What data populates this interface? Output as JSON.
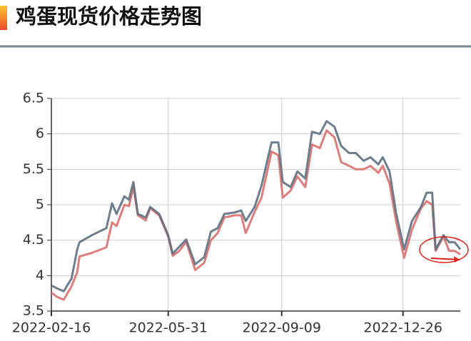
{
  "chart_data": {
    "type": "line",
    "title": "鸡蛋现货价格走势图",
    "x": [
      "2022-02-16",
      "2022-02-21",
      "2022-02-27",
      "2022-03-06",
      "2022-03-11",
      "2022-03-13",
      "2022-03-24",
      "2022-04-06",
      "2022-04-11",
      "2022-04-15",
      "2022-04-22",
      "2022-04-26",
      "2022-04-30",
      "2022-05-04",
      "2022-05-11",
      "2022-05-15",
      "2022-05-23",
      "2022-05-31",
      "2022-06-04",
      "2022-06-10",
      "2022-06-16",
      "2022-06-24",
      "2022-07-02",
      "2022-07-08",
      "2022-07-14",
      "2022-07-20",
      "2022-07-29",
      "2022-08-04",
      "2022-08-08",
      "2022-08-16",
      "2022-08-22",
      "2022-08-31",
      "2022-09-06",
      "2022-09-10",
      "2022-09-17",
      "2022-09-23",
      "2022-09-30",
      "2022-10-06",
      "2022-10-13",
      "2022-10-19",
      "2022-10-26",
      "2022-11-01",
      "2022-11-08",
      "2022-11-14",
      "2022-11-21",
      "2022-11-27",
      "2022-12-04",
      "2022-12-08",
      "2022-12-14",
      "2022-12-20",
      "2022-12-27",
      "2023-01-03",
      "2023-01-11",
      "2023-01-16",
      "2023-01-21",
      "2023-01-24",
      "2023-01-31",
      "2023-02-05",
      "2023-02-10",
      "2023-02-15"
    ],
    "series": [
      {
        "color": "#d9706e",
        "values": [
          3.76,
          3.7,
          3.66,
          3.85,
          4.05,
          4.27,
          4.32,
          4.4,
          4.75,
          4.7,
          5.0,
          4.98,
          5.25,
          4.85,
          4.78,
          4.95,
          4.85,
          4.55,
          4.28,
          4.35,
          4.48,
          4.08,
          4.18,
          4.5,
          4.6,
          4.82,
          4.85,
          4.85,
          4.6,
          4.9,
          5.1,
          5.75,
          5.7,
          5.1,
          5.2,
          5.4,
          5.25,
          5.85,
          5.8,
          6.05,
          5.95,
          5.6,
          5.55,
          5.5,
          5.5,
          5.55,
          5.45,
          5.55,
          5.3,
          4.75,
          4.25,
          4.65,
          4.95,
          5.05,
          5.0,
          4.35,
          4.55,
          4.35,
          4.35,
          4.3
        ]
      },
      {
        "color": "#5f6f80",
        "values": [
          3.86,
          3.82,
          3.78,
          3.96,
          4.37,
          4.47,
          4.57,
          4.67,
          5.02,
          4.87,
          5.12,
          5.07,
          5.32,
          4.87,
          4.82,
          4.97,
          4.87,
          4.57,
          4.31,
          4.41,
          4.51,
          4.16,
          4.26,
          4.62,
          4.67,
          4.87,
          4.89,
          4.92,
          4.77,
          4.97,
          5.27,
          5.88,
          5.88,
          5.32,
          5.25,
          5.47,
          5.37,
          6.03,
          6.0,
          6.18,
          6.1,
          5.83,
          5.73,
          5.73,
          5.62,
          5.67,
          5.57,
          5.67,
          5.47,
          4.87,
          4.37,
          4.77,
          4.97,
          5.17,
          5.17,
          4.37,
          4.57,
          4.47,
          4.47,
          4.37
        ]
      }
    ],
    "xlim": [
      "2022-02-16",
      "2023-02-15"
    ],
    "xticks": [
      "2022-02-16",
      "2022-05-31",
      "2022-09-09",
      "2022-12-26"
    ],
    "ylim": [
      3.5,
      6.5
    ],
    "yticks": [
      3.5,
      4,
      4.5,
      5,
      5.5,
      6,
      6.5
    ],
    "grid": true
  }
}
